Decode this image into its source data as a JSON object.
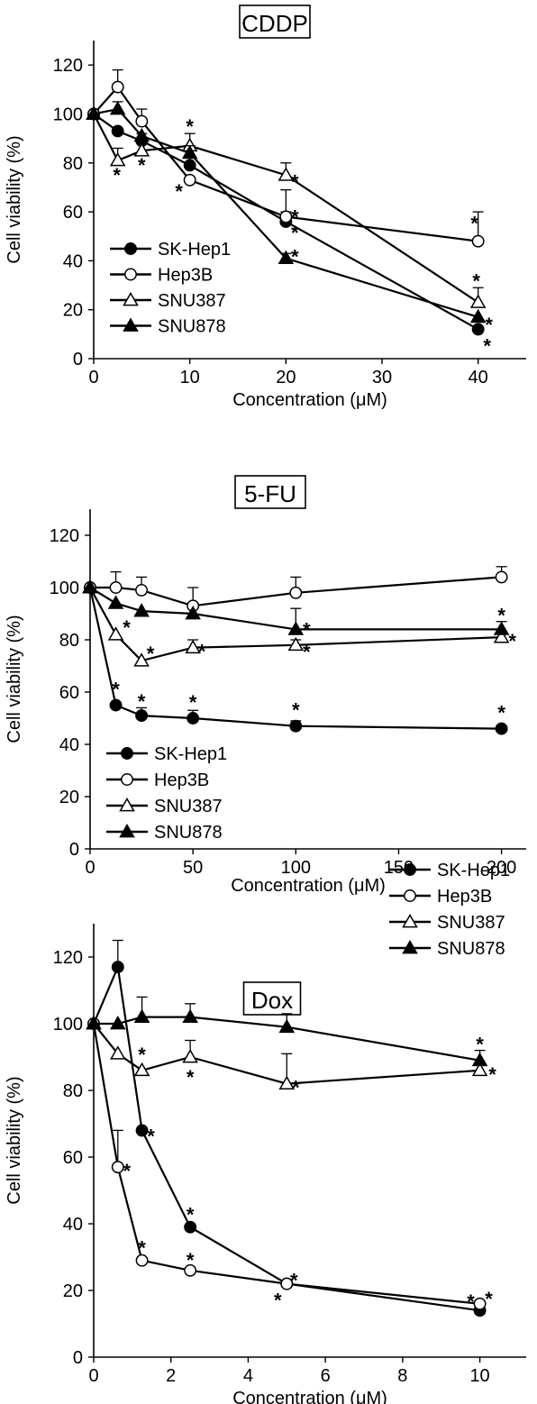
{
  "chart_data": [
    {
      "type": "line",
      "title": "CDDP",
      "xlabel": "Concentration (μM)",
      "ylabel": "Cell viability (%)",
      "xlim": [
        0,
        45
      ],
      "ylim": [
        0,
        130
      ],
      "xticks": [
        "0",
        "10",
        "20",
        "30",
        "40"
      ],
      "yticks": [
        "0",
        "20",
        "40",
        "60",
        "80",
        "100",
        "120"
      ],
      "legend": "lower-left",
      "series": [
        {
          "name": "SK-Hep1",
          "marker": "filled-circle",
          "x": [
            0,
            2.5,
            5,
            10,
            20,
            40
          ],
          "y": [
            100,
            93,
            89,
            79,
            56,
            12
          ],
          "err": [
            0,
            0,
            3,
            3,
            4,
            0
          ],
          "sig": [
            false,
            false,
            false,
            false,
            true,
            true
          ]
        },
        {
          "name": "Hep3B",
          "marker": "open-circle",
          "x": [
            0,
            2.5,
            5,
            10,
            20,
            40
          ],
          "y": [
            100,
            111,
            97,
            73,
            58,
            48
          ],
          "err": [
            0,
            7,
            5,
            0,
            11,
            12
          ],
          "sig": [
            false,
            false,
            false,
            true,
            true,
            true
          ]
        },
        {
          "name": "SNU387",
          "marker": "open-triangle",
          "x": [
            0,
            2.5,
            5,
            10,
            20,
            40
          ],
          "y": [
            100,
            81,
            85,
            87,
            75,
            23
          ],
          "err": [
            0,
            5,
            0,
            5,
            5,
            6
          ],
          "sig": [
            false,
            true,
            true,
            true,
            true,
            true
          ]
        },
        {
          "name": "SNU878",
          "marker": "filled-triangle",
          "x": [
            0,
            2.5,
            5,
            10,
            20,
            40
          ],
          "y": [
            100,
            102,
            91,
            84,
            41,
            17
          ],
          "err": [
            0,
            3,
            0,
            3,
            2,
            0
          ],
          "sig": [
            false,
            false,
            false,
            false,
            true,
            true
          ]
        }
      ]
    },
    {
      "type": "line",
      "title": "5-FU",
      "xlabel": "Concentration (μM)",
      "ylabel": "Cell viability (%)",
      "xlim": [
        0,
        212
      ],
      "ylim": [
        0,
        130
      ],
      "xticks": [
        "0",
        "50",
        "100",
        "150",
        "200"
      ],
      "yticks": [
        "0",
        "20",
        "40",
        "60",
        "80",
        "100",
        "120"
      ],
      "legend": "lower-left",
      "series": [
        {
          "name": "SK-Hep1",
          "marker": "filled-circle",
          "x": [
            0,
            12.5,
            25,
            50,
            100,
            200
          ],
          "y": [
            100,
            55,
            51,
            50,
            47,
            46
          ],
          "err": [
            0,
            0,
            3,
            3,
            2,
            0
          ],
          "sig": [
            false,
            true,
            true,
            true,
            true,
            true
          ]
        },
        {
          "name": "Hep3B",
          "marker": "open-circle",
          "x": [
            0,
            12.5,
            25,
            50,
            100,
            200
          ],
          "y": [
            100,
            100,
            99,
            93,
            98,
            104
          ],
          "err": [
            0,
            6,
            5,
            7,
            6,
            4
          ],
          "sig": [
            false,
            false,
            false,
            false,
            false,
            false
          ]
        },
        {
          "name": "SNU387",
          "marker": "open-triangle",
          "x": [
            0,
            12.5,
            25,
            50,
            100,
            200
          ],
          "y": [
            100,
            82,
            72,
            77,
            78,
            81
          ],
          "err": [
            0,
            0,
            0,
            3,
            2,
            2
          ],
          "sig": [
            false,
            true,
            true,
            true,
            true,
            true
          ]
        },
        {
          "name": "SNU878",
          "marker": "filled-triangle",
          "x": [
            0,
            12.5,
            25,
            50,
            100,
            200
          ],
          "y": [
            100,
            94,
            91,
            90,
            84,
            84
          ],
          "err": [
            0,
            0,
            0,
            0,
            8,
            3
          ],
          "sig": [
            false,
            false,
            false,
            false,
            true,
            true
          ]
        }
      ]
    },
    {
      "type": "line",
      "title": "Dox",
      "xlabel": "Concentration (μM)",
      "ylabel": "Cell viability (%)",
      "xlim": [
        0,
        11.2
      ],
      "ylim": [
        0,
        130
      ],
      "xticks": [
        "0",
        "2",
        "4",
        "6",
        "8",
        "10"
      ],
      "yticks": [
        "0",
        "20",
        "40",
        "60",
        "80",
        "100",
        "120"
      ],
      "legend": "right",
      "series": [
        {
          "name": "SK-Hep1",
          "marker": "filled-circle",
          "x": [
            0,
            0.625,
            1.25,
            2.5,
            5,
            10
          ],
          "y": [
            100,
            117,
            68,
            39,
            22,
            14
          ],
          "err": [
            0,
            8,
            0,
            0,
            0,
            0
          ],
          "sig": [
            false,
            false,
            true,
            true,
            true,
            true
          ]
        },
        {
          "name": "Hep3B",
          "marker": "open-circle",
          "x": [
            0,
            0.625,
            1.25,
            2.5,
            5,
            10
          ],
          "y": [
            100,
            57,
            29,
            26,
            22,
            16
          ],
          "err": [
            0,
            11,
            0,
            0,
            0,
            0
          ],
          "sig": [
            false,
            true,
            true,
            true,
            true,
            true
          ]
        },
        {
          "name": "SNU387",
          "marker": "open-triangle",
          "x": [
            0,
            0.625,
            1.25,
            2.5,
            5,
            10
          ],
          "y": [
            100,
            91,
            86,
            90,
            82,
            86
          ],
          "err": [
            0,
            0,
            0,
            5,
            9,
            0
          ],
          "sig": [
            false,
            false,
            true,
            true,
            true,
            true
          ]
        },
        {
          "name": "SNU878",
          "marker": "filled-triangle",
          "x": [
            0,
            0.625,
            1.25,
            2.5,
            5,
            10
          ],
          "y": [
            100,
            100,
            102,
            102,
            99,
            89
          ],
          "err": [
            0,
            0,
            6,
            4,
            4,
            3
          ],
          "sig": [
            false,
            false,
            false,
            false,
            false,
            true
          ]
        }
      ]
    }
  ],
  "significance_mark": "*"
}
